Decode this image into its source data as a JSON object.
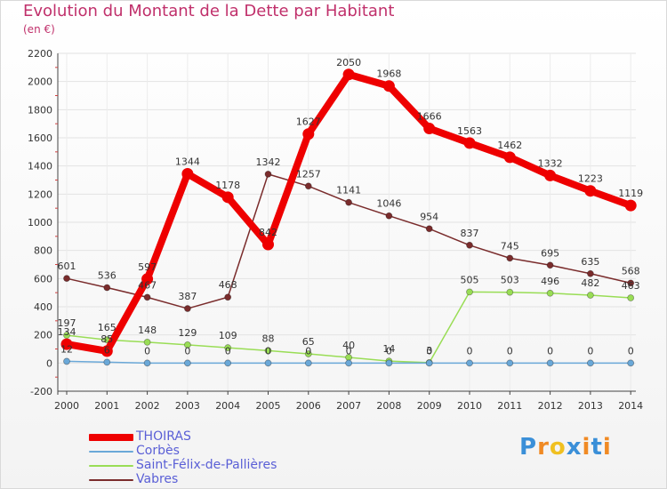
{
  "header": {
    "title": "Evolution du Montant de la Dette par Habitant",
    "subtitle": "(en €)"
  },
  "logo": {
    "text": "Proxiti",
    "colors": [
      "#3a8fd8",
      "#f08a24",
      "#f0c020",
      "#3a8fd8",
      "#f08a24",
      "#3a8fd8",
      "#f08a24"
    ]
  },
  "chart_data": {
    "type": "line",
    "title": "Evolution du Montant de la Dette par Habitant",
    "subtitle": "(en €)",
    "xlabel": "",
    "ylabel": "",
    "ylim": [
      -200,
      2200
    ],
    "y_ticks": [
      -200,
      0,
      200,
      400,
      600,
      800,
      1000,
      1200,
      1400,
      1600,
      1800,
      2000,
      2200
    ],
    "grid": true,
    "legend_position": "bottom",
    "categories": [
      "2000",
      "2001",
      "2002",
      "2003",
      "2004",
      "2005",
      "2006",
      "2007",
      "2008",
      "2009",
      "2010",
      "2011",
      "2012",
      "2013",
      "2014"
    ],
    "series": [
      {
        "name": "THOIRAS",
        "color": "#ee0000",
        "values": [
          134,
          85,
          597,
          1344,
          1178,
          842,
          1627,
          2050,
          1968,
          1666,
          1563,
          1462,
          1332,
          1223,
          1119
        ],
        "labels": [
          "134",
          "85",
          "597",
          "1344",
          "1178",
          "842",
          "1627",
          "2050",
          "1968",
          "1666",
          "1563",
          "1462",
          "1332",
          "1223",
          "1119"
        ]
      },
      {
        "name": "Corbès",
        "color": "#6aa8d8",
        "values": [
          12,
          6,
          0,
          0,
          0,
          0,
          0,
          0,
          0,
          0,
          0,
          0,
          0,
          0,
          0
        ],
        "labels": [
          "12",
          "6",
          "0",
          "0",
          "0",
          "0",
          "0",
          "0",
          "0",
          "0",
          "0",
          "0",
          "0",
          "0",
          "0"
        ]
      },
      {
        "name": "Saint-Félix-de-Pallières",
        "color": "#99dd55",
        "values": [
          197,
          165,
          148,
          129,
          109,
          88,
          65,
          40,
          14,
          3,
          505,
          503,
          496,
          482,
          463
        ],
        "labels": [
          "197",
          "165",
          "148",
          "129",
          "109",
          "88",
          "65",
          "40",
          "14",
          "3",
          "505",
          "503",
          "496",
          "482",
          "463"
        ]
      },
      {
        "name": "Vabres",
        "color": "#7a2c2c",
        "values": [
          601,
          536,
          467,
          387,
          468,
          1342,
          1257,
          1141,
          1046,
          954,
          837,
          745,
          695,
          635,
          568
        ],
        "labels": [
          "601",
          "536",
          "467",
          "387",
          "468",
          "1342",
          "1257",
          "1141",
          "1046",
          "954",
          "837",
          "745",
          "695",
          "635",
          "568"
        ]
      }
    ]
  }
}
